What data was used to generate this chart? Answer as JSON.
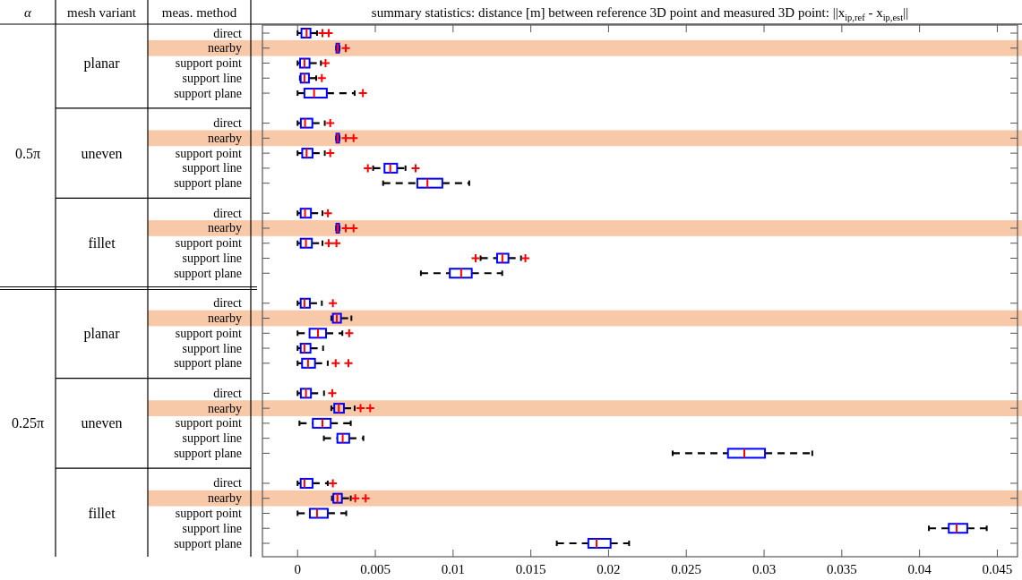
{
  "chart_data": {
    "type": "box",
    "orientation": "horizontal",
    "title": "summary statistics: distance [m] between reference 3D point and measured 3D point: ||x$_{ip,ref}$ - x$_{ip,est}$||",
    "annotations": [
      "α",
      "mesh variant",
      "meas. method",
      "0.5π",
      "planar",
      "uneven",
      "fillet",
      "0.25π",
      "planar",
      "uneven",
      "fillet"
    ],
    "categories": [
      "direct",
      "nearby",
      "support point",
      "support line",
      "support plane",
      null,
      "direct",
      "nearby",
      "support point",
      "support line",
      "support plane",
      null,
      "direct",
      "nearby",
      "support point",
      "support line",
      "support plane",
      null,
      "direct",
      "nearby",
      "support point",
      "support line",
      "support plane",
      null,
      "direct",
      "nearby",
      "support point",
      "support line",
      "support plane",
      null,
      "direct",
      "nearby",
      "support point",
      "support line",
      "support plane"
    ],
    "boxes": [
      {
        "low": 0,
        "q1": 0.00025,
        "median": 0.00058,
        "q3": 0.00083,
        "high": 0.00125,
        "outliers": [
          0.0016,
          0.002
        ]
      },
      {
        "low": 0.00248,
        "q1": 0.0025,
        "median": 0.00256,
        "q3": 0.00267,
        "high": 0.0027,
        "outliers": [
          0.0031
        ]
      },
      {
        "low": 0,
        "q1": 0.00016,
        "median": 0.00044,
        "q3": 0.00077,
        "high": 0.0015,
        "outliers": [
          0.0018
        ]
      },
      {
        "low": 0.00015,
        "q1": 0.0002,
        "median": 0.00044,
        "q3": 0.00073,
        "high": 0.0012,
        "outliers": [
          0.00156
        ]
      },
      {
        "low": 0,
        "q1": 0.00044,
        "median": 0.00106,
        "q3": 0.00188,
        "high": 0.00367,
        "outliers": [
          0.0042
        ]
      },
      null,
      {
        "low": 0,
        "q1": 0.00021,
        "median": 0.00048,
        "q3": 0.00095,
        "high": 0.00175,
        "outliers": [
          0.0021
        ]
      },
      {
        "low": 0.00248,
        "q1": 0.0025,
        "median": 0.00256,
        "q3": 0.00267,
        "high": 0.0027,
        "outliers": [
          0.0031,
          0.0036
        ]
      },
      {
        "low": 0,
        "q1": 0.0003,
        "median": 0.00058,
        "q3": 0.00096,
        "high": 0.00175,
        "outliers": [
          0.0021
        ]
      },
      {
        "low": 0.00486,
        "q1": 0.00559,
        "median": 0.00596,
        "q3": 0.0064,
        "high": 0.00694,
        "outliers": [
          0.00452,
          0.00759
        ]
      },
      {
        "low": 0.0055,
        "q1": 0.0077,
        "median": 0.00835,
        "q3": 0.00931,
        "high": 0.01104
      },
      null,
      {
        "low": 0,
        "q1": 0.0002,
        "median": 0.00048,
        "q3": 0.00086,
        "high": 0.0016,
        "outliers": [
          0.00195
        ]
      },
      {
        "low": 0.00248,
        "q1": 0.0025,
        "median": 0.00256,
        "q3": 0.00267,
        "high": 0.0027,
        "outliers": [
          0.0031,
          0.0036
        ]
      },
      {
        "low": 0,
        "q1": 0.0002,
        "median": 0.00054,
        "q3": 0.00092,
        "high": 0.0016,
        "outliers": [
          0.002,
          0.0025
        ]
      },
      {
        "low": 0.01177,
        "q1": 0.01283,
        "median": 0.01317,
        "q3": 0.01356,
        "high": 0.01437,
        "outliers": [
          0.01145,
          0.01465
        ]
      },
      {
        "low": 0.00793,
        "q1": 0.00979,
        "median": 0.01052,
        "q3": 0.0112,
        "high": 0.01316
      },
      null,
      {
        "low": 0,
        "q1": 0.0002,
        "median": 0.00044,
        "q3": 0.00079,
        "high": 0.00156,
        "outliers": [
          0.00227
        ]
      },
      {
        "low": 0.00217,
        "q1": 0.00227,
        "median": 0.00252,
        "q3": 0.00279,
        "high": 0.00346
      },
      {
        "low": 0,
        "q1": 0.00077,
        "median": 0.00131,
        "q3": 0.00183,
        "high": 0.00288,
        "outliers": [
          0.00332
        ]
      },
      {
        "low": 0,
        "q1": 0.0002,
        "median": 0.00044,
        "q3": 0.00083,
        "high": 0.00164
      },
      {
        "low": 0,
        "q1": 0.00029,
        "median": 0.00067,
        "q3": 0.00112,
        "high": 0.00194,
        "outliers": [
          0.00245,
          0.00327
        ]
      },
      null,
      {
        "low": 0,
        "q1": 0.00021,
        "median": 0.00054,
        "q3": 0.00086,
        "high": 0.0017,
        "outliers": [
          0.00223
        ]
      },
      {
        "low": 0.00217,
        "q1": 0.00236,
        "median": 0.00265,
        "q3": 0.00298,
        "high": 0.00367,
        "outliers": [
          0.00405,
          0.00467
        ]
      },
      {
        "low": 0.00012,
        "q1": 0.00098,
        "median": 0.0016,
        "q3": 0.00213,
        "high": 0.00342
      },
      {
        "low": 0.00169,
        "q1": 0.00256,
        "median": 0.0029,
        "q3": 0.00332,
        "high": 0.00423
      },
      {
        "low": 0.02412,
        "q1": 0.02768,
        "median": 0.02873,
        "q3": 0.03006,
        "high": 0.0331
      },
      null,
      {
        "low": 0,
        "q1": 0.0002,
        "median": 0.00044,
        "q3": 0.00096,
        "high": 0.00194,
        "outliers": [
          0.00227
        ]
      },
      {
        "low": 0.00221,
        "q1": 0.0023,
        "median": 0.00256,
        "q3": 0.00285,
        "high": 0.00342,
        "outliers": [
          0.00371,
          0.00438
        ]
      },
      {
        "low": 0,
        "q1": 0.00079,
        "median": 0.00125,
        "q3": 0.00194,
        "high": 0.00313
      },
      {
        "low": 0.0406,
        "q1": 0.04188,
        "median": 0.04238,
        "q3": 0.04307,
        "high": 0.04432
      },
      {
        "low": 0.01667,
        "q1": 0.0187,
        "median": 0.01923,
        "q3": 0.02013,
        "high": 0.02132
      }
    ],
    "bands": [
      {
        "axis": "y",
        "from": "nearby",
        "to": "nearby",
        "color": "#f7c9a9"
      }
    ],
    "color": "#0000ff",
    "xlim": [
      -0.00226,
      0.0463
    ],
    "xticks": [
      0,
      0.005,
      0.01,
      0.015,
      0.02,
      0.025,
      0.03,
      0.035,
      0.04,
      0.045
    ],
    "marker": "cross",
    "line_style": "dashed",
    "grid": false
  }
}
